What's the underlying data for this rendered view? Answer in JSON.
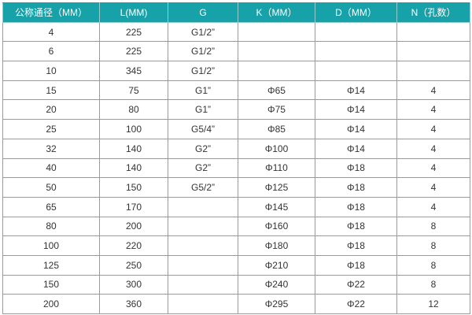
{
  "table": {
    "header_color": "#17a1a8",
    "headers": [
      "公称通径（MM）",
      "L(MM)",
      "G",
      "K（MM）",
      "D（MM）",
      "N（孔数）"
    ],
    "rows": [
      [
        "4",
        "225",
        "G1/2”",
        "",
        "",
        ""
      ],
      [
        "6",
        "225",
        "G1/2”",
        "",
        "",
        ""
      ],
      [
        "10",
        "345",
        "G1/2”",
        "",
        "",
        ""
      ],
      [
        "15",
        "75",
        "G1”",
        "Φ65",
        "Φ14",
        "4"
      ],
      [
        "20",
        "80",
        "G1”",
        "Φ75",
        "Φ14",
        "4"
      ],
      [
        "25",
        "100",
        "G5/4”",
        "Φ85",
        "Φ14",
        "4"
      ],
      [
        "32",
        "140",
        "G2”",
        "Φ100",
        "Φ14",
        "4"
      ],
      [
        "40",
        "140",
        "G2”",
        "Φ110",
        "Φ18",
        "4"
      ],
      [
        "50",
        "150",
        "G5/2”",
        "Φ125",
        "Φ18",
        "4"
      ],
      [
        "65",
        "170",
        "",
        "Φ145",
        "Φ18",
        "4"
      ],
      [
        "80",
        "200",
        "",
        "Φ160",
        "Φ18",
        "8"
      ],
      [
        "100",
        "220",
        "",
        "Φ180",
        "Φ18",
        "8"
      ],
      [
        "125",
        "250",
        "",
        "Φ210",
        "Φ18",
        "8"
      ],
      [
        "150",
        "300",
        "",
        "Φ240",
        "Φ22",
        "8"
      ],
      [
        "200",
        "360",
        "",
        "Φ295",
        "Φ22",
        "12"
      ]
    ]
  }
}
